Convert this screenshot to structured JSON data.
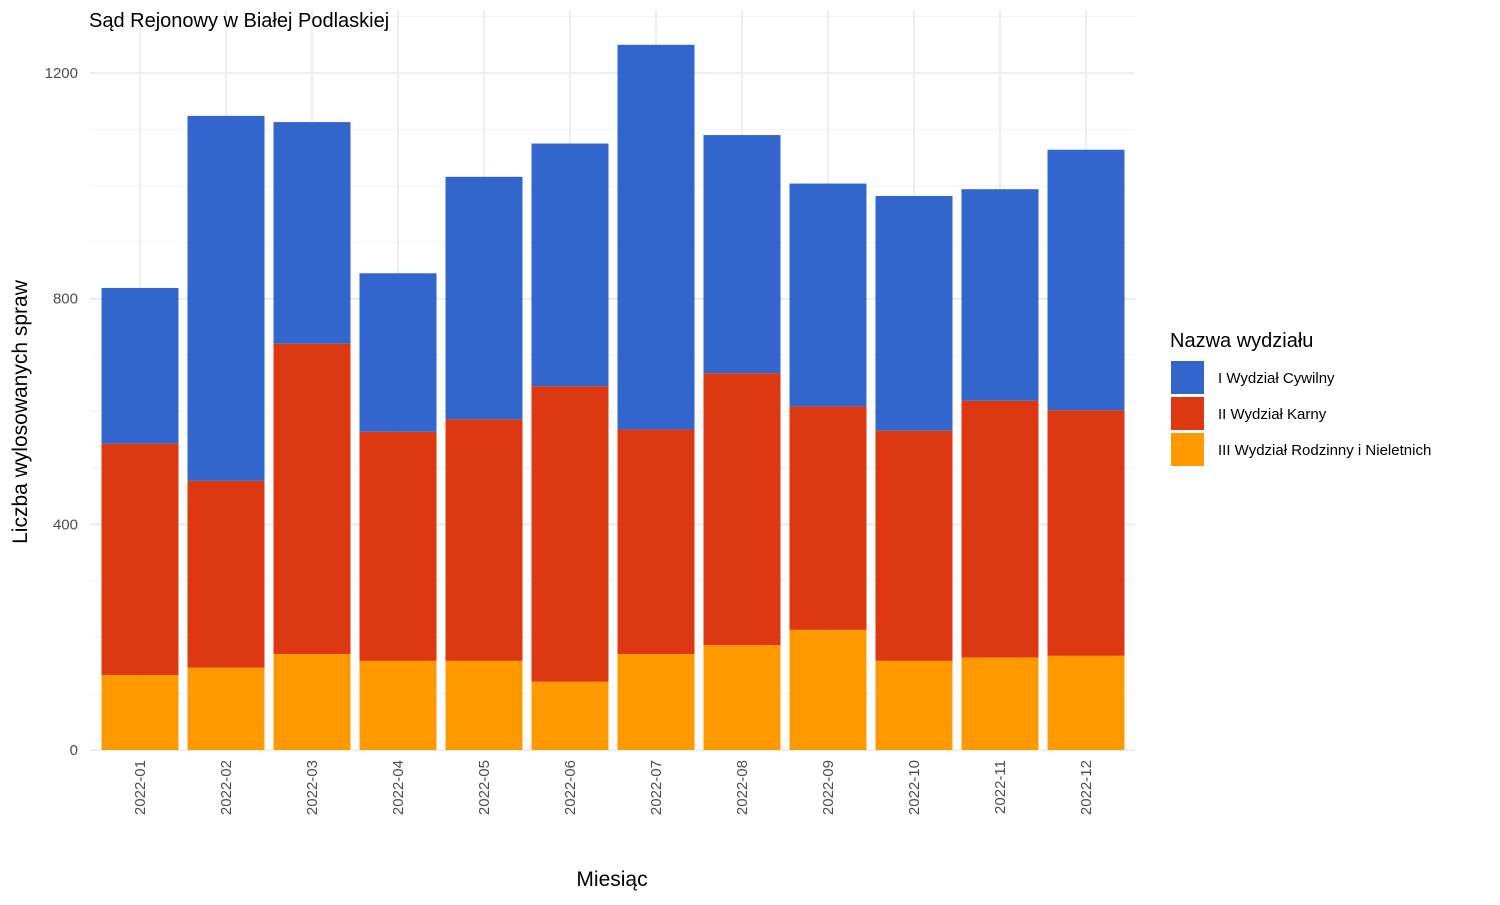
{
  "chart_data": {
    "type": "bar",
    "stacked": true,
    "title": "Sąd Rejonowy w Białej Podlaskiej",
    "xlabel": "Miesiąc",
    "ylabel": "Liczba wylosowanych spraw",
    "ylim": [
      0,
      1300
    ],
    "yticks": [
      0,
      400,
      800,
      1200
    ],
    "grid": true,
    "legend_title": "Nazwa wydziału",
    "legend_position": "right",
    "categories": [
      "2022-01",
      "2022-02",
      "2022-03",
      "2022-04",
      "2022-05",
      "2022-06",
      "2022-07",
      "2022-08",
      "2022-09",
      "2022-10",
      "2022-11",
      "2022-12"
    ],
    "series": [
      {
        "name": "III Wydział Rodzinny i Nieletnich",
        "color": "#FF9900",
        "values": [
          133,
          146,
          170,
          158,
          158,
          121,
          170,
          186,
          213,
          158,
          164,
          167
        ]
      },
      {
        "name": "II Wydział Karny",
        "color": "#DC3912",
        "values": [
          410,
          331,
          550,
          406,
          428,
          524,
          398,
          482,
          396,
          408,
          455,
          435
        ]
      },
      {
        "name": "I Wydział Cywilny",
        "color": "#3366CC",
        "values": [
          276,
          647,
          393,
          281,
          430,
          430,
          682,
          422,
          395,
          416,
          375,
          462
        ]
      }
    ],
    "legend_order": [
      "I Wydział Cywilny",
      "II Wydział Karny",
      "III Wydział Rodzinny i Nieletnich"
    ]
  }
}
